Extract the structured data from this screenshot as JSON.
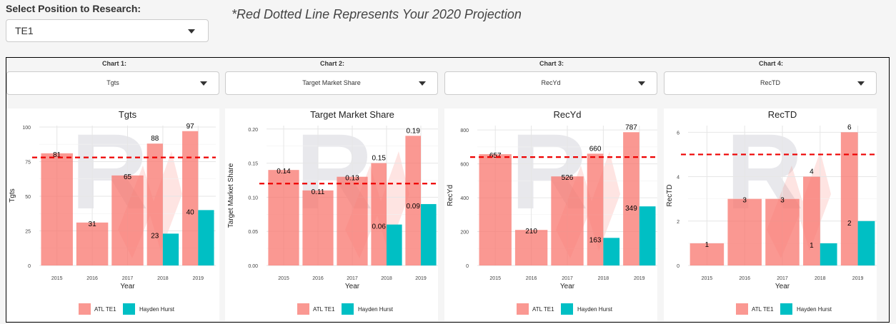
{
  "header": {
    "position_label": "Select Position to Research:",
    "position_value": "TE1",
    "note": "*Red Dotted Line Represents Your 2020 Projection"
  },
  "columns": [
    {
      "label": "Chart 1:",
      "selected": "Tgts"
    },
    {
      "label": "Chart 2:",
      "selected": "Target Market Share"
    },
    {
      "label": "Chart 3:",
      "selected": "RecYd"
    },
    {
      "label": "Chart 4:",
      "selected": "RecTD"
    }
  ],
  "legend": [
    "ATL TE1",
    "Hayden Hurst"
  ],
  "colors": {
    "team": "#f8766d",
    "player": "#00bfc4",
    "projection": "#ee0000"
  },
  "chart_data": [
    {
      "type": "bar",
      "title": "Tgts",
      "xlabel": "Year",
      "ylabel": "Tgts",
      "categories": [
        "2015",
        "2016",
        "2017",
        "2018",
        "2019"
      ],
      "yticks": [
        "0",
        "25",
        "50",
        "75",
        "100"
      ],
      "ytick_values": [
        0,
        25,
        50,
        75,
        100
      ],
      "ylim": [
        0,
        101
      ],
      "projection": 78,
      "series": [
        {
          "name": "ATL TE1",
          "values": [
            81,
            31,
            65,
            88,
            97
          ],
          "labels": [
            "81",
            "31",
            "65",
            "88",
            "97"
          ]
        },
        {
          "name": "Hayden Hurst",
          "values": [
            null,
            null,
            null,
            23,
            40
          ],
          "labels": [
            "",
            "",
            "",
            "23",
            "40"
          ]
        }
      ]
    },
    {
      "type": "bar",
      "title": "Target Market Share",
      "xlabel": "Year",
      "ylabel": "Target Market Share",
      "categories": [
        "2015",
        "2016",
        "2017",
        "2018",
        "2019"
      ],
      "yticks": [
        "0.00",
        "0.05",
        "0.10",
        "0.15",
        "0.20"
      ],
      "ytick_values": [
        0,
        0.05,
        0.1,
        0.15,
        0.2
      ],
      "ylim": [
        0,
        0.205
      ],
      "projection": 0.12,
      "series": [
        {
          "name": "ATL TE1",
          "values": [
            0.14,
            0.11,
            0.13,
            0.15,
            0.19
          ],
          "labels": [
            "0.14",
            "0.11",
            "0.13",
            "0.15",
            "0.19"
          ]
        },
        {
          "name": "Hayden Hurst",
          "values": [
            null,
            null,
            null,
            0.06,
            0.09
          ],
          "labels": [
            "",
            "",
            "",
            "0.06",
            "0.09"
          ]
        }
      ]
    },
    {
      "type": "bar",
      "title": "RecYd",
      "xlabel": "Year",
      "ylabel": "RecYd",
      "categories": [
        "2015",
        "2016",
        "2017",
        "2018",
        "2019"
      ],
      "yticks": [
        "0",
        "200",
        "400",
        "600",
        "800"
      ],
      "ytick_values": [
        0,
        200,
        400,
        600,
        800
      ],
      "ylim": [
        0,
        826
      ],
      "projection": 640,
      "series": [
        {
          "name": "ATL TE1",
          "values": [
            657,
            210,
            526,
            660,
            787
          ],
          "labels": [
            "657",
            "210",
            "526",
            "660",
            "787"
          ]
        },
        {
          "name": "Hayden Hurst",
          "values": [
            null,
            null,
            null,
            163,
            349
          ],
          "labels": [
            "",
            "",
            "",
            "163",
            "349"
          ]
        }
      ]
    },
    {
      "type": "bar",
      "title": "RecTD",
      "xlabel": "Year",
      "ylabel": "RecTD",
      "categories": [
        "2015",
        "2016",
        "2017",
        "2018",
        "2019"
      ],
      "yticks": [
        "0",
        "2",
        "4",
        "6"
      ],
      "ytick_values": [
        0,
        2,
        4,
        6
      ],
      "ylim": [
        0,
        6.3
      ],
      "projection": 5,
      "series": [
        {
          "name": "ATL TE1",
          "values": [
            1,
            3,
            3,
            4,
            6
          ],
          "labels": [
            "1",
            "3",
            "3",
            "4",
            "6"
          ]
        },
        {
          "name": "Hayden Hurst",
          "values": [
            null,
            null,
            null,
            1,
            2
          ],
          "labels": [
            "",
            "",
            "",
            "1",
            "2"
          ]
        }
      ]
    }
  ]
}
